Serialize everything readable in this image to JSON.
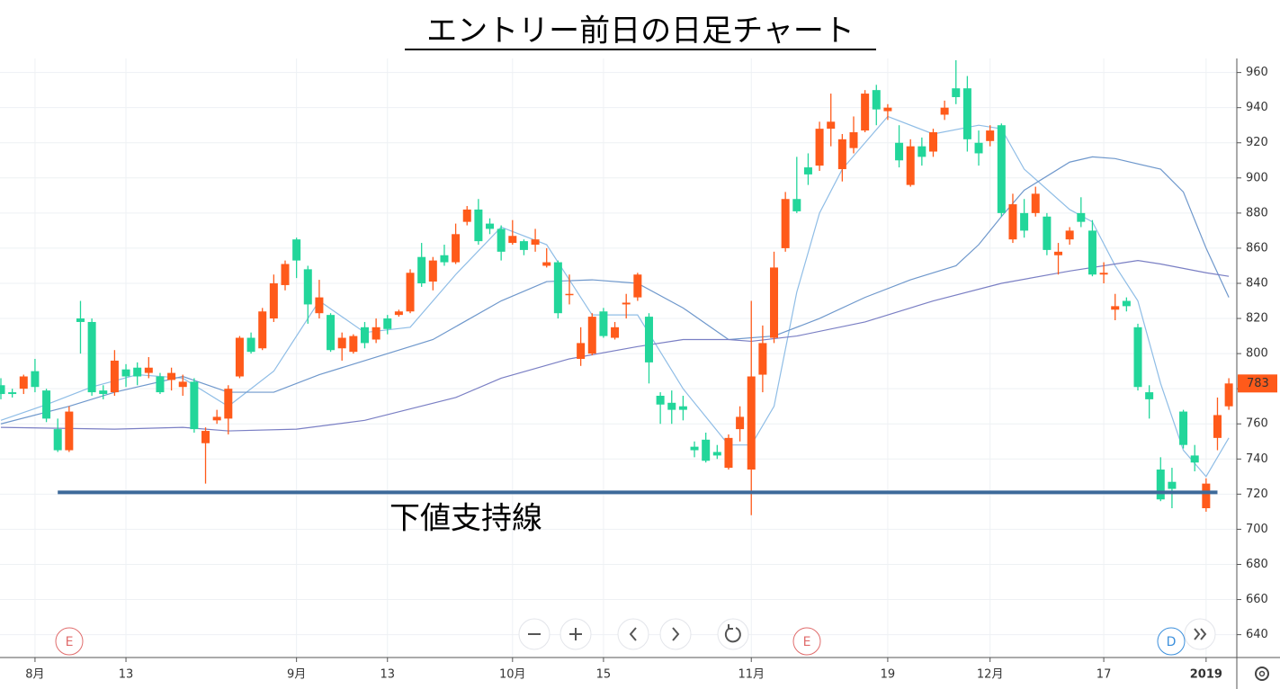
{
  "chart_data": {
    "type": "candlestick",
    "title": "エントリー前日の日足チャート",
    "categories": [
      null,
      null,
      null,
      "8月",
      null,
      null,
      null,
      null,
      null,
      null,
      null,
      "13",
      null,
      null,
      null,
      null,
      null,
      null,
      null,
      null,
      null,
      null,
      null,
      null,
      null,
      null,
      "9月",
      null,
      null,
      null,
      null,
      null,
      null,
      null,
      "13",
      null,
      null,
      null,
      null,
      null,
      null,
      null,
      null,
      null,
      null,
      "10月",
      null,
      null,
      null,
      null,
      null,
      null,
      null,
      "15",
      null,
      null,
      null,
      null,
      null,
      null,
      null,
      null,
      null,
      null,
      null,
      null,
      "11月",
      null,
      null,
      null,
      null,
      null,
      null,
      null,
      null,
      null,
      null,
      null,
      "19",
      null,
      null,
      null,
      null,
      null,
      null,
      null,
      null,
      "12月",
      null,
      null,
      null,
      null,
      null,
      null,
      null,
      null,
      null,
      "17",
      null,
      null,
      null,
      null,
      null,
      null,
      null,
      null,
      "2019",
      null,
      null
    ],
    "series": [
      {
        "open": [
          782,
          778,
          780,
          790,
          779,
          757,
          745,
          820,
          818,
          779,
          778,
          791,
          792,
          789,
          787,
          785,
          781,
          784,
          749,
          762,
          763,
          787,
          809,
          803,
          820,
          839,
          865,
          848,
          823,
          822,
          803,
          801,
          815,
          808,
          820,
          822,
          824,
          855,
          841,
          856,
          852,
          875,
          882,
          874,
          871,
          863,
          864,
          862,
          850,
          852,
          834,
          797,
          800,
          824,
          809,
          828,
          832,
          821,
          776,
          772,
          770,
          747,
          751,
          744,
          735,
          757,
          734,
          788,
          809,
          860,
          888,
          906,
          907,
          928,
          905,
          917,
          927,
          950,
          938,
          920,
          896,
          918,
          915,
          936,
          951,
          951,
          920,
          921,
          930,
          865,
          880,
          880,
          878,
          856,
          865,
          880,
          870,
          845,
          825,
          830,
          815,
          778,
          734,
          727,
          767,
          742,
          712,
          752,
          770
        ],
        "high": [
          786,
          780,
          788,
          797,
          780,
          763,
          770,
          830,
          820,
          782,
          802,
          794,
          795,
          798,
          789,
          792,
          788,
          786,
          758,
          768,
          782,
          810,
          812,
          826,
          845,
          853,
          866,
          850,
          842,
          823,
          812,
          811,
          818,
          820,
          822,
          825,
          848,
          863,
          855,
          862,
          874,
          884,
          888,
          877,
          873,
          876,
          865,
          871,
          860,
          853,
          845,
          815,
          823,
          826,
          818,
          834,
          846,
          823,
          778,
          779,
          776,
          750,
          755,
          748,
          754,
          770,
          830,
          816,
          858,
          892,
          912,
          914,
          932,
          948,
          925,
          935,
          950,
          953,
          942,
          930,
          922,
          923,
          928,
          944,
          967,
          958,
          927,
          930,
          931,
          891,
          888,
          895,
          880,
          863,
          872,
          889,
          876,
          852,
          834,
          832,
          817,
          782,
          741,
          735,
          768,
          748,
          729,
          775,
          786
        ],
        "low": [
          774,
          775,
          777,
          778,
          761,
          744,
          744,
          800,
          776,
          774,
          776,
          781,
          782,
          786,
          777,
          779,
          776,
          755,
          726,
          760,
          754,
          786,
          800,
          802,
          818,
          836,
          843,
          817,
          820,
          801,
          796,
          800,
          803,
          806,
          811,
          821,
          823,
          838,
          836,
          850,
          851,
          873,
          862,
          868,
          853,
          862,
          856,
          858,
          849,
          820,
          828,
          793,
          799,
          809,
          808,
          820,
          830,
          783,
          760,
          760,
          762,
          741,
          738,
          740,
          734,
          750,
          708,
          778,
          806,
          858,
          880,
          896,
          904,
          918,
          898,
          914,
          926,
          930,
          933,
          906,
          895,
          907,
          912,
          933,
          942,
          915,
          907,
          918,
          878,
          863,
          866,
          878,
          856,
          845,
          862,
          872,
          844,
          840,
          819,
          824,
          779,
          763,
          716,
          712,
          746,
          733,
          710,
          745,
          768
        ],
        "close": [
          777,
          777,
          787,
          781,
          763,
          745,
          767,
          818,
          778,
          777,
          796,
          787,
          787,
          792,
          778,
          789,
          784,
          757,
          756,
          764,
          780,
          809,
          801,
          824,
          840,
          851,
          853,
          828,
          832,
          802,
          809,
          810,
          806,
          815,
          814,
          824,
          846,
          840,
          853,
          852,
          868,
          882,
          864,
          871,
          858,
          867,
          859,
          865,
          852,
          823,
          834,
          806,
          821,
          810,
          815,
          829,
          845,
          795,
          771,
          768,
          768,
          745,
          739,
          742,
          752,
          764,
          787,
          806,
          849,
          888,
          881,
          902,
          928,
          932,
          922,
          926,
          948,
          939,
          940,
          910,
          918,
          912,
          926,
          940,
          946,
          922,
          914,
          927,
          880,
          885,
          870,
          891,
          859,
          858,
          870,
          875,
          845,
          846,
          827,
          827,
          781,
          774,
          717,
          723,
          748,
          738,
          726,
          765,
          783
        ],
        "up_color": "#ff5a1a",
        "down_color": "#22d69a"
      }
    ],
    "ma_lines": [
      {
        "color": "#8fbde6",
        "x": [
          0,
          4,
          8,
          12,
          16,
          20,
          24,
          28,
          32,
          36,
          40,
          44,
          48,
          52,
          56,
          60,
          64,
          66,
          68,
          70,
          72,
          74,
          78,
          82,
          86,
          88,
          90,
          94,
          96,
          98,
          100,
          102,
          104,
          106,
          108
        ],
        "values": [
          762,
          771,
          781,
          788,
          786,
          770,
          790,
          830,
          812,
          815,
          845,
          872,
          862,
          822,
          822,
          780,
          748,
          748,
          770,
          835,
          880,
          905,
          935,
          925,
          930,
          928,
          905,
          882,
          875,
          850,
          830,
          783,
          745,
          730,
          752
        ]
      },
      {
        "color": "#6f98cc",
        "x": [
          0,
          6,
          10,
          16,
          20,
          24,
          28,
          32,
          38,
          44,
          48,
          52,
          56,
          60,
          64,
          68,
          72,
          76,
          80,
          84,
          86,
          88,
          90,
          94,
          96,
          98,
          102,
          104,
          106,
          108
        ],
        "values": [
          760,
          770,
          778,
          787,
          778,
          778,
          788,
          796,
          808,
          830,
          841,
          842,
          840,
          826,
          808,
          810,
          820,
          832,
          842,
          850,
          862,
          878,
          893,
          909,
          912,
          911,
          905,
          892,
          860,
          832
        ]
      },
      {
        "color": "#7a7fc4",
        "x": [
          0,
          10,
          16,
          20,
          26,
          32,
          40,
          44,
          50,
          56,
          60,
          64,
          66,
          70,
          76,
          82,
          88,
          94,
          98,
          100,
          102,
          106,
          108
        ],
        "values": [
          758,
          757,
          758,
          756,
          757,
          762,
          775,
          786,
          797,
          804,
          808,
          808,
          807,
          810,
          818,
          830,
          840,
          847,
          851,
          853,
          851,
          846,
          844
        ]
      }
    ],
    "support_line": {
      "value": 721,
      "label": "下値支持線",
      "color": "#3d6a9a"
    },
    "event_markers": [
      "E",
      "E",
      "D"
    ],
    "ylim": [
      627,
      968
    ],
    "yticks": [
      640,
      660,
      680,
      700,
      720,
      740,
      760,
      780,
      800,
      820,
      840,
      860,
      880,
      900,
      920,
      940,
      960
    ],
    "grid": true
  }
}
